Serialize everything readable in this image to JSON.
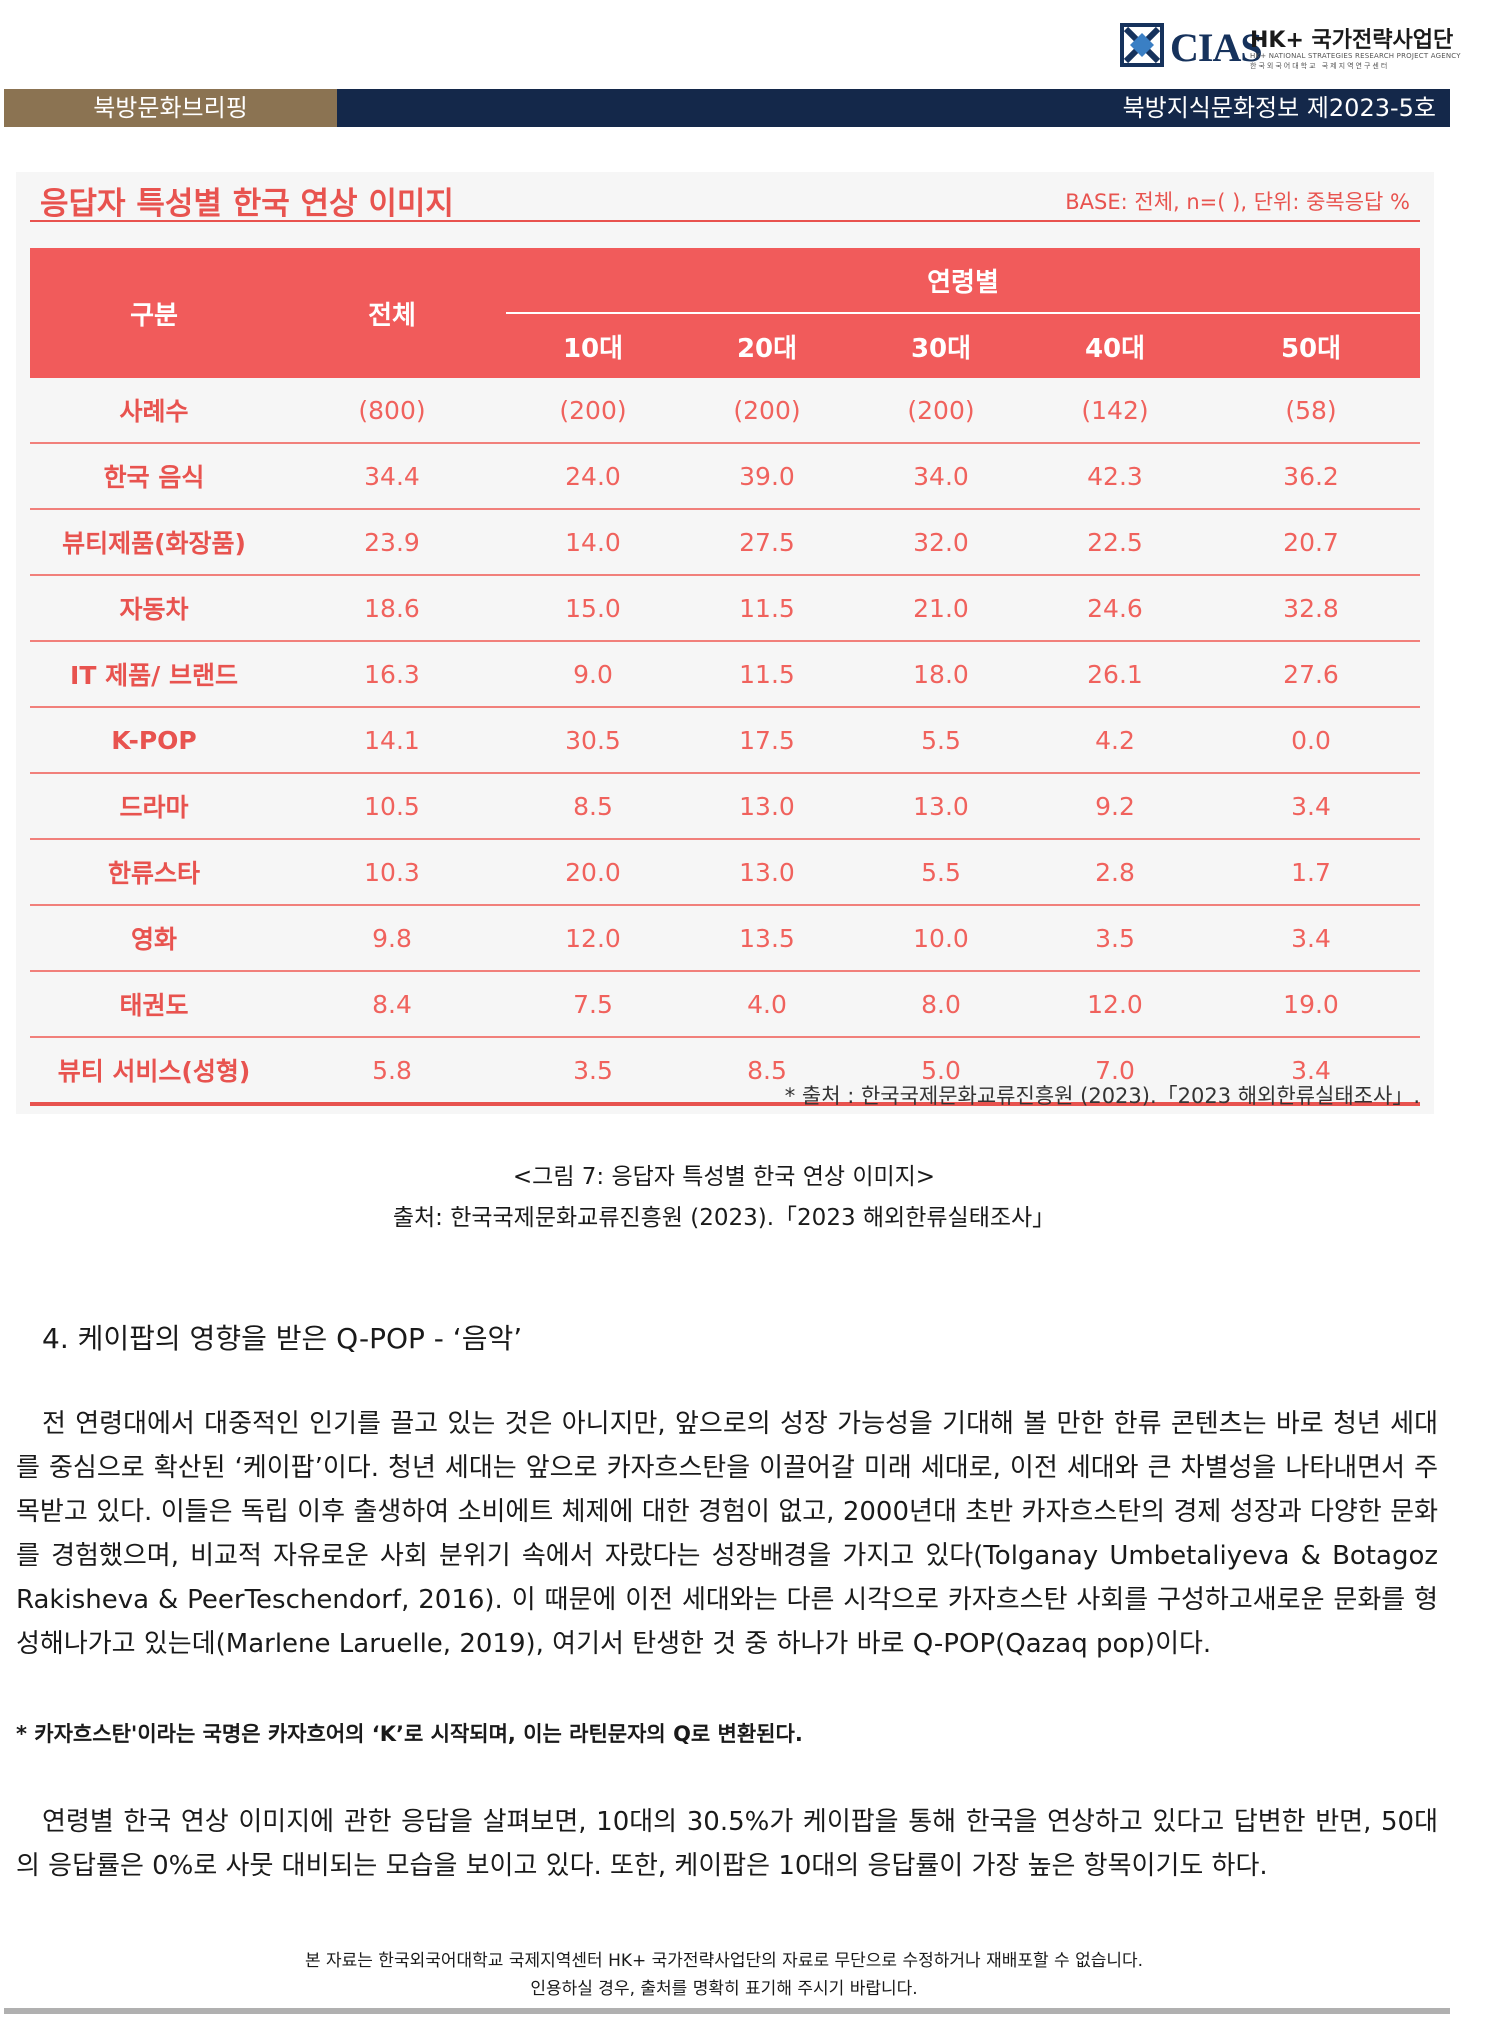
{
  "header": {
    "logo_cias": "CIAS",
    "logo_hk": "HK+ 국가전략사업단",
    "logo_sub_en": "HK+ NATIONAL STRATEGIES RESEARCH PROJECT AGENCY",
    "logo_sub_ko": "한국외국어대학교 국제지역연구센터",
    "band_left": "북방문화브리핑",
    "band_right": "북방지식문화정보 제2023-5호"
  },
  "figure": {
    "title": "응답자 특성별 한국 연상 이미지",
    "base_note": "BASE: 전체, n=( ), 단위: 중복응답 %",
    "source": "* 출처 : 한국국제문화교류진흥원 (2023).「2023 해외한류실태조사」.",
    "table": {
      "header_category": "구분",
      "header_total": "전체",
      "header_age": "연령별",
      "age_columns": [
        "10대",
        "20대",
        "30대",
        "40대",
        "50대"
      ],
      "rows": [
        {
          "category": "사례수",
          "values": [
            "(800)",
            "(200)",
            "(200)",
            "(200)",
            "(142)",
            "(58)"
          ]
        },
        {
          "category": "한국 음식",
          "values": [
            "34.4",
            "24.0",
            "39.0",
            "34.0",
            "42.3",
            "36.2"
          ]
        },
        {
          "category": "뷰티제품(화장품)",
          "values": [
            "23.9",
            "14.0",
            "27.5",
            "32.0",
            "22.5",
            "20.7"
          ]
        },
        {
          "category": "자동차",
          "values": [
            "18.6",
            "15.0",
            "11.5",
            "21.0",
            "24.6",
            "32.8"
          ]
        },
        {
          "category": "IT 제품/ 브랜드",
          "values": [
            "16.3",
            "9.0",
            "11.5",
            "18.0",
            "26.1",
            "27.6"
          ]
        },
        {
          "category": "K-POP",
          "values": [
            "14.1",
            "30.5",
            "17.5",
            "5.5",
            "4.2",
            "0.0"
          ]
        },
        {
          "category": "드라마",
          "values": [
            "10.5",
            "8.5",
            "13.0",
            "13.0",
            "9.2",
            "3.4"
          ]
        },
        {
          "category": "한류스타",
          "values": [
            "10.3",
            "20.0",
            "13.0",
            "5.5",
            "2.8",
            "1.7"
          ]
        },
        {
          "category": "영화",
          "values": [
            "9.8",
            "12.0",
            "13.5",
            "10.0",
            "3.5",
            "3.4"
          ]
        },
        {
          "category": "태권도",
          "values": [
            "8.4",
            "7.5",
            "4.0",
            "8.0",
            "12.0",
            "19.0"
          ]
        },
        {
          "category": "뷰티 서비스(성형)",
          "values": [
            "5.8",
            "3.5",
            "8.5",
            "5.0",
            "7.0",
            "3.4"
          ]
        }
      ]
    }
  },
  "caption": {
    "line1": "<그림 7: 응답자 특성별 한국 연상 이미지>",
    "line2": "출처: 한국국제문화교류진흥원 (2023).「2023 해외한류실태조사」"
  },
  "section_title": "4. 케이팝의 영향을 받은 Q-POP - ‘음악’",
  "paragraph1": "전 연령대에서 대중적인 인기를 끌고 있는 것은 아니지만, 앞으로의 성장 가능성을 기대해 볼 만한 한류 콘텐츠는 바로 청년 세대를 중심으로 확산된 ‘케이팝’이다. 청년 세대는 앞으로 카자흐스탄을 이끌어갈 미래 세대로, 이전 세대와 큰 차별성을 나타내면서 주목받고 있다. 이들은 독립 이후 출생하여 소비에트 체제에 대한 경험이 없고, 2000년대 초반 카자흐스탄의 경제 성장과 다양한 문화를 경험했으며, 비교적 자유로운 사회 분위기 속에서 자랐다는 성장배경을 가지고 있다(Tolganay Umbetaliyeva & Botagoz Rakisheva & PeerTeschendorf, 2016). 이 때문에 이전 세대와는 다른 시각으로 카자흐스탄 사회를 구성하고새로운 문화를 형성해나가고 있는데(Marlene Laruelle, 2019), 여기서 탄생한 것 중 하나가 바로 Q-POP(Qazaq pop)이다.",
  "note": "* 카자흐스탄'이라는 국명은 카자흐어의 ‘K’로 시작되며, 이는 라틴문자의 Q로 변환된다.",
  "paragraph2": "연령별 한국 연상 이미지에 관한 응답을 살펴보면, 10대의 30.5%가 케이팝을 통해 한국을 연상하고 있다고 답변한 반면, 50대의 응답률은 0%로 사뭇 대비되는 모습을 보이고 있다. 또한, 케이팝은 10대의 응답률이 가장 높은 항목이기도 하다.",
  "footer": {
    "line1": "본 자료는 한국외국어대학교 국제지역센터 HK+ 국가전략사업단의 자료로 무단으로 수정하거나 재배포할 수 없습니다.",
    "line2": "인용하실 경우, 출처를 명확히 표기해 주시기 바랍니다."
  },
  "colors": {
    "accent": "#e8534f",
    "header_fill": "#f15b5b",
    "navy": "#14284a",
    "brown": "#8b7352"
  }
}
